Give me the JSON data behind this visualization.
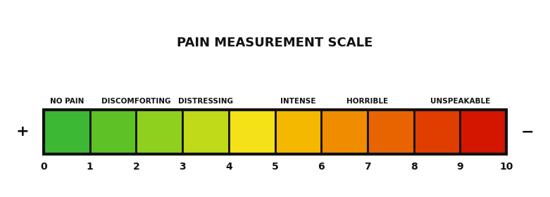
{
  "title": "PAIN MEASUREMENT SCALE",
  "title_fontsize": 13,
  "title_fontweight": "bold",
  "labels": [
    "NO PAIN",
    "DISCOMFORTING",
    "DISTRESSING",
    "INTENSE",
    "HORRIBLE",
    "UNSPEAKABLE"
  ],
  "label_x_positions": [
    0.5,
    2.0,
    3.5,
    5.5,
    7.0,
    9.0
  ],
  "tick_labels": [
    "0",
    "1",
    "2",
    "3",
    "4",
    "5",
    "6",
    "7",
    "8",
    "9",
    "10"
  ],
  "tick_positions": [
    0,
    1,
    2,
    3,
    4,
    5,
    6,
    7,
    8,
    9,
    10
  ],
  "segment_colors": [
    "#3cb834",
    "#5ec226",
    "#8fd01e",
    "#c0d918",
    "#f5e118",
    "#f5b800",
    "#f08c00",
    "#e86400",
    "#e03e00",
    "#d41500"
  ],
  "background_color": "#ffffff",
  "border_color": "#111111",
  "border_linewidth": 2.0,
  "label_fontsize": 7.5,
  "label_fontweight": "bold",
  "tick_fontsize": 10,
  "tick_fontweight": "bold",
  "plus_sign": "+",
  "minus_sign": "−",
  "sign_fontsize": 16,
  "sign_fontweight": "bold",
  "xlim_left": -0.9,
  "xlim_right": 10.9,
  "bar_bottom": 0.0,
  "bar_height": 0.7
}
